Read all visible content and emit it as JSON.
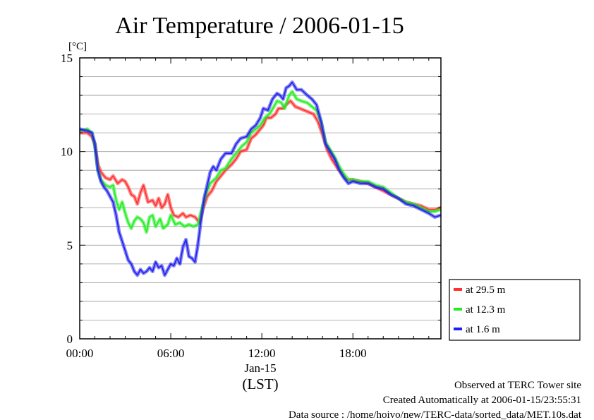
{
  "chart_data": {
    "type": "line",
    "title": "Air Temperature / 2006-01-15",
    "ylabel": "[°C]",
    "xlabel": "(LST)",
    "date_label": "Jan-15",
    "ylim": [
      0,
      15
    ],
    "yticks": [
      0,
      5,
      10,
      15
    ],
    "y_minor_step": 1,
    "xlim": [
      0,
      23.8
    ],
    "xticks": [
      {
        "value": 0,
        "label": "00:00"
      },
      {
        "value": 6,
        "label": "06:00"
      },
      {
        "value": 12,
        "label": "12:00"
      },
      {
        "value": 18,
        "label": "18:00"
      }
    ],
    "grid": true,
    "legend": "outside-right",
    "series": [
      {
        "name": "at 29.5 m",
        "color": "#ff3030",
        "points": [
          [
            0,
            11.0
          ],
          [
            0.5,
            11.0
          ],
          [
            0.8,
            10.8
          ],
          [
            1.0,
            10.4
          ],
          [
            1.2,
            9.3
          ],
          [
            1.4,
            8.9
          ],
          [
            1.7,
            8.6
          ],
          [
            2.0,
            8.5
          ],
          [
            2.2,
            8.7
          ],
          [
            2.5,
            8.3
          ],
          [
            2.8,
            8.5
          ],
          [
            3.0,
            8.4
          ],
          [
            3.2,
            8.1
          ],
          [
            3.4,
            7.7
          ],
          [
            3.6,
            7.6
          ],
          [
            3.8,
            7.2
          ],
          [
            4.0,
            7.8
          ],
          [
            4.2,
            8.2
          ],
          [
            4.5,
            7.3
          ],
          [
            4.8,
            7.4
          ],
          [
            5.0,
            7.1
          ],
          [
            5.2,
            7.5
          ],
          [
            5.4,
            7.0
          ],
          [
            5.6,
            7.2
          ],
          [
            5.8,
            7.7
          ],
          [
            6.0,
            7.0
          ],
          [
            6.2,
            6.6
          ],
          [
            6.5,
            6.5
          ],
          [
            6.8,
            6.7
          ],
          [
            7.0,
            6.5
          ],
          [
            7.3,
            6.6
          ],
          [
            7.6,
            6.5
          ],
          [
            7.9,
            6.2
          ],
          [
            8.1,
            6.9
          ],
          [
            8.4,
            7.6
          ],
          [
            8.7,
            7.9
          ],
          [
            9.0,
            8.4
          ],
          [
            9.3,
            8.7
          ],
          [
            9.6,
            9.0
          ],
          [
            10.0,
            9.3
          ],
          [
            10.3,
            9.6
          ],
          [
            10.6,
            10.0
          ],
          [
            11.0,
            10.1
          ],
          [
            11.3,
            10.7
          ],
          [
            11.6,
            10.9
          ],
          [
            11.9,
            11.2
          ],
          [
            12.1,
            11.4
          ],
          [
            12.3,
            11.8
          ],
          [
            12.6,
            11.8
          ],
          [
            12.9,
            12.0
          ],
          [
            13.1,
            12.3
          ],
          [
            13.4,
            12.3
          ],
          [
            13.6,
            12.5
          ],
          [
            13.9,
            12.7
          ],
          [
            14.2,
            12.4
          ],
          [
            14.5,
            12.3
          ],
          [
            14.8,
            12.2
          ],
          [
            15.1,
            12.1
          ],
          [
            15.4,
            12.0
          ],
          [
            15.7,
            11.6
          ],
          [
            16.0,
            10.9
          ],
          [
            16.3,
            10.1
          ],
          [
            16.6,
            9.6
          ],
          [
            17.0,
            9.1
          ],
          [
            17.3,
            8.8
          ],
          [
            17.6,
            8.5
          ],
          [
            18.0,
            8.5
          ],
          [
            18.5,
            8.4
          ],
          [
            19.0,
            8.3
          ],
          [
            19.5,
            8.1
          ],
          [
            20.0,
            7.9
          ],
          [
            20.5,
            7.7
          ],
          [
            21.0,
            7.5
          ],
          [
            21.5,
            7.3
          ],
          [
            22.0,
            7.2
          ],
          [
            22.5,
            7.1
          ],
          [
            23.0,
            6.9
          ],
          [
            23.4,
            6.9
          ],
          [
            23.8,
            7.0
          ]
        ]
      },
      {
        "name": "at 12.3 m",
        "color": "#20ee20",
        "points": [
          [
            0,
            11.1
          ],
          [
            0.5,
            11.2
          ],
          [
            0.8,
            11.0
          ],
          [
            1.0,
            10.3
          ],
          [
            1.2,
            9.0
          ],
          [
            1.4,
            8.5
          ],
          [
            1.7,
            8.2
          ],
          [
            2.0,
            8.1
          ],
          [
            2.2,
            8.2
          ],
          [
            2.4,
            7.4
          ],
          [
            2.6,
            6.9
          ],
          [
            2.8,
            7.3
          ],
          [
            3.0,
            6.7
          ],
          [
            3.2,
            6.2
          ],
          [
            3.4,
            5.9
          ],
          [
            3.6,
            6.3
          ],
          [
            3.8,
            6.5
          ],
          [
            4.0,
            6.4
          ],
          [
            4.2,
            6.2
          ],
          [
            4.4,
            5.7
          ],
          [
            4.6,
            6.5
          ],
          [
            4.8,
            6.6
          ],
          [
            5.0,
            6.0
          ],
          [
            5.3,
            6.4
          ],
          [
            5.5,
            5.9
          ],
          [
            5.8,
            6.1
          ],
          [
            6.0,
            6.6
          ],
          [
            6.3,
            6.1
          ],
          [
            6.6,
            6.2
          ],
          [
            6.9,
            6.0
          ],
          [
            7.2,
            6.1
          ],
          [
            7.5,
            6.0
          ],
          [
            7.8,
            6.1
          ],
          [
            8.0,
            6.8
          ],
          [
            8.3,
            7.7
          ],
          [
            8.6,
            8.3
          ],
          [
            9.0,
            8.6
          ],
          [
            9.3,
            9.0
          ],
          [
            9.6,
            9.1
          ],
          [
            10.0,
            9.6
          ],
          [
            10.3,
            9.9
          ],
          [
            10.7,
            10.3
          ],
          [
            11.0,
            10.5
          ],
          [
            11.3,
            11.0
          ],
          [
            11.6,
            11.2
          ],
          [
            11.9,
            11.4
          ],
          [
            12.2,
            11.8
          ],
          [
            12.5,
            12.0
          ],
          [
            12.8,
            12.4
          ],
          [
            13.0,
            12.7
          ],
          [
            13.3,
            12.6
          ],
          [
            13.5,
            12.3
          ],
          [
            13.8,
            13.0
          ],
          [
            14.0,
            13.2
          ],
          [
            14.3,
            12.8
          ],
          [
            14.6,
            12.7
          ],
          [
            15.0,
            12.6
          ],
          [
            15.3,
            12.4
          ],
          [
            15.6,
            12.2
          ],
          [
            15.9,
            11.6
          ],
          [
            16.2,
            10.5
          ],
          [
            16.5,
            10.1
          ],
          [
            16.8,
            9.7
          ],
          [
            17.1,
            9.2
          ],
          [
            17.4,
            8.8
          ],
          [
            17.7,
            8.5
          ],
          [
            18.0,
            8.5
          ],
          [
            18.5,
            8.4
          ],
          [
            19.0,
            8.4
          ],
          [
            19.5,
            8.2
          ],
          [
            20.0,
            8.1
          ],
          [
            20.5,
            7.8
          ],
          [
            21.0,
            7.5
          ],
          [
            21.5,
            7.3
          ],
          [
            22.0,
            7.2
          ],
          [
            22.5,
            7.0
          ],
          [
            23.0,
            6.8
          ],
          [
            23.4,
            6.8
          ],
          [
            23.8,
            6.9
          ]
        ]
      },
      {
        "name": "at 1.6 m",
        "color": "#2020ee",
        "points": [
          [
            0,
            11.2
          ],
          [
            0.5,
            11.1
          ],
          [
            0.8,
            11.0
          ],
          [
            1.0,
            10.4
          ],
          [
            1.2,
            9.0
          ],
          [
            1.4,
            8.4
          ],
          [
            1.6,
            8.1
          ],
          [
            1.8,
            7.9
          ],
          [
            2.0,
            7.6
          ],
          [
            2.2,
            7.3
          ],
          [
            2.4,
            6.6
          ],
          [
            2.6,
            5.7
          ],
          [
            2.8,
            5.2
          ],
          [
            3.0,
            4.7
          ],
          [
            3.2,
            4.2
          ],
          [
            3.4,
            4.0
          ],
          [
            3.6,
            3.6
          ],
          [
            3.8,
            3.4
          ],
          [
            4.0,
            3.7
          ],
          [
            4.2,
            3.5
          ],
          [
            4.4,
            3.6
          ],
          [
            4.6,
            3.8
          ],
          [
            4.8,
            3.6
          ],
          [
            5.0,
            4.1
          ],
          [
            5.2,
            3.8
          ],
          [
            5.4,
            3.9
          ],
          [
            5.6,
            3.4
          ],
          [
            5.8,
            3.7
          ],
          [
            6.0,
            4.0
          ],
          [
            6.2,
            3.9
          ],
          [
            6.4,
            4.3
          ],
          [
            6.6,
            4.0
          ],
          [
            6.8,
            4.9
          ],
          [
            7.0,
            5.3
          ],
          [
            7.2,
            4.4
          ],
          [
            7.4,
            4.3
          ],
          [
            7.6,
            4.1
          ],
          [
            7.8,
            5.1
          ],
          [
            8.0,
            6.4
          ],
          [
            8.2,
            7.5
          ],
          [
            8.4,
            8.2
          ],
          [
            8.6,
            8.9
          ],
          [
            8.8,
            9.2
          ],
          [
            9.0,
            9.0
          ],
          [
            9.3,
            9.6
          ],
          [
            9.6,
            9.9
          ],
          [
            10.0,
            9.9
          ],
          [
            10.3,
            10.4
          ],
          [
            10.6,
            10.7
          ],
          [
            11.0,
            10.8
          ],
          [
            11.3,
            11.2
          ],
          [
            11.6,
            11.4
          ],
          [
            11.9,
            11.8
          ],
          [
            12.1,
            12.3
          ],
          [
            12.4,
            12.2
          ],
          [
            12.7,
            12.8
          ],
          [
            13.0,
            13.1
          ],
          [
            13.2,
            13.0
          ],
          [
            13.4,
            12.8
          ],
          [
            13.6,
            13.4
          ],
          [
            13.8,
            13.5
          ],
          [
            14.0,
            13.7
          ],
          [
            14.3,
            13.3
          ],
          [
            14.6,
            13.3
          ],
          [
            15.0,
            13.0
          ],
          [
            15.3,
            12.8
          ],
          [
            15.6,
            12.5
          ],
          [
            15.9,
            11.6
          ],
          [
            16.2,
            10.4
          ],
          [
            16.5,
            10.0
          ],
          [
            16.8,
            9.6
          ],
          [
            17.1,
            9.0
          ],
          [
            17.4,
            8.6
          ],
          [
            17.7,
            8.3
          ],
          [
            18.0,
            8.4
          ],
          [
            18.5,
            8.3
          ],
          [
            19.0,
            8.3
          ],
          [
            19.5,
            8.1
          ],
          [
            20.0,
            8.0
          ],
          [
            20.5,
            7.7
          ],
          [
            21.0,
            7.5
          ],
          [
            21.5,
            7.2
          ],
          [
            22.0,
            7.1
          ],
          [
            22.5,
            6.9
          ],
          [
            23.0,
            6.7
          ],
          [
            23.4,
            6.5
          ],
          [
            23.8,
            6.6
          ]
        ]
      }
    ]
  },
  "footer": {
    "site": "Observed at TERC Tower site",
    "created": "Created Automatically at 2006-01-15/23:55:31",
    "source": "Data source : /home/hoivo/new/TERC-data/sorted_data/MET.10s.dat"
  }
}
